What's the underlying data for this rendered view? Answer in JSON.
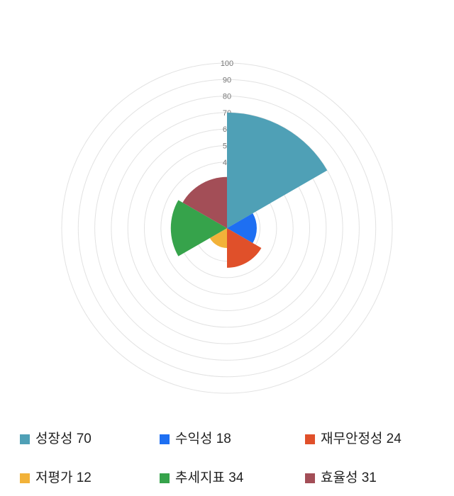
{
  "page": {
    "background": "#ffffff"
  },
  "chart_data": {
    "type": "polar_area",
    "title": "",
    "categories": [
      "성장성",
      "수익성",
      "재무안정성",
      "저평가",
      "추세지표",
      "효율성"
    ],
    "values": [
      70,
      18,
      24,
      12,
      34,
      31
    ],
    "colors": [
      "#4FA0B6",
      "#1E6FF2",
      "#E0502A",
      "#F2B239",
      "#36A34B",
      "#A34E57"
    ],
    "rmax": 100,
    "grid_circle_values": [
      10,
      20,
      30,
      40,
      50,
      60,
      70,
      80,
      90,
      100
    ],
    "tick_labels": [
      100,
      90,
      80,
      70,
      60,
      50,
      40
    ],
    "start_angle_deg": 0,
    "sector_angle_deg": 60,
    "direction": "clockwise",
    "grid": true,
    "grid_color": "#e2e2e2",
    "tick_label_color": "#777777",
    "legend_position": "bottom",
    "legend_items": [
      {
        "label": "성장성 70",
        "color": "#4FA0B6"
      },
      {
        "label": "수익성 18",
        "color": "#1E6FF2"
      },
      {
        "label": "재무안정성 24",
        "color": "#E0502A"
      },
      {
        "label": "저평가 12",
        "color": "#F2B239"
      },
      {
        "label": "추세지표 34",
        "color": "#36A34B"
      },
      {
        "label": "효율성 31",
        "color": "#A34E57"
      }
    ]
  }
}
